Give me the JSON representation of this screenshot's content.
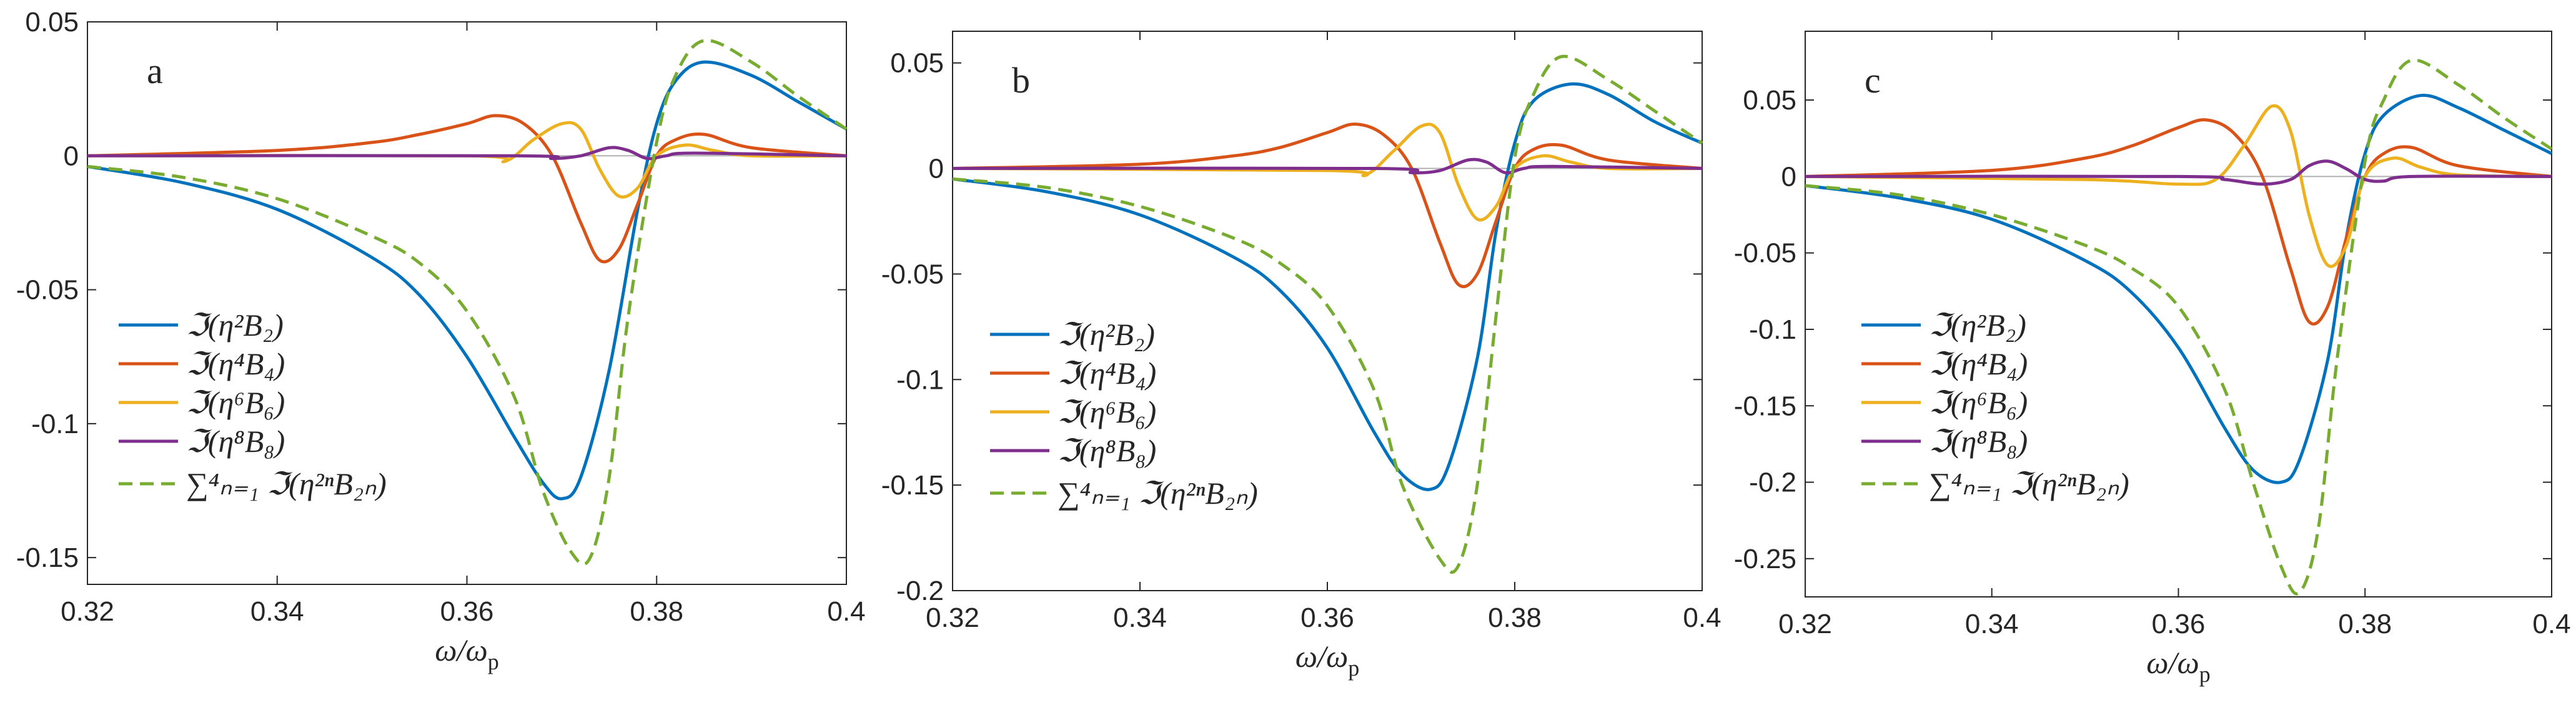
{
  "chart_data": [
    {
      "type": "line",
      "panel_label": "a",
      "xlabel": "ω/ω",
      "xlabel_sub": "p",
      "xlim": [
        0.32,
        0.4
      ],
      "ylim": [
        -0.16,
        0.05
      ],
      "xticks": [
        0.32,
        0.34,
        0.36,
        0.38,
        0.4
      ],
      "xtick_labels": [
        "0.32",
        "0.34",
        "0.36",
        "0.38",
        "0.4"
      ],
      "yticks": [
        -0.15,
        -0.1,
        -0.05,
        0,
        0.05
      ],
      "ytick_labels": [
        "-0.15",
        "-0.1",
        "-0.05",
        "0",
        "0.05"
      ],
      "legend": [
        "ℑ(η²B₂)",
        "ℑ(η⁴B₄)",
        "ℑ(η⁶B₆)",
        "ℑ(η⁸B₈)",
        "∑⁴ₙ₌₁ ℑ(η²ⁿB₂ₙ)"
      ],
      "series": [
        {
          "name": "Im(eta^2 B2)",
          "color": "#0072BD",
          "dashed": false,
          "x": [
            0.32,
            0.33,
            0.34,
            0.35,
            0.355,
            0.36,
            0.365,
            0.368,
            0.37,
            0.372,
            0.375,
            0.378,
            0.38,
            0.382,
            0.385,
            0.39,
            0.395,
            0.4
          ],
          "y": [
            -0.004,
            -0.01,
            -0.02,
            -0.038,
            -0.052,
            -0.075,
            -0.105,
            -0.122,
            -0.128,
            -0.12,
            -0.08,
            -0.02,
            0.012,
            0.028,
            0.035,
            0.03,
            0.02,
            0.01
          ]
        },
        {
          "name": "Im(eta^4 B4)",
          "color": "#D95319",
          "dashed": false,
          "x": [
            0.32,
            0.34,
            0.35,
            0.355,
            0.36,
            0.363,
            0.366,
            0.369,
            0.372,
            0.374,
            0.376,
            0.378,
            0.38,
            0.382,
            0.385,
            0.39,
            0.4
          ],
          "y": [
            0.0,
            0.002,
            0.005,
            0.008,
            0.012,
            0.015,
            0.012,
            0.0,
            -0.025,
            -0.039,
            -0.035,
            -0.018,
            0.0,
            0.006,
            0.008,
            0.003,
            0.0
          ]
        },
        {
          "name": "Im(eta^6 B6)",
          "color": "#EDB120",
          "dashed": false,
          "x": [
            0.32,
            0.36,
            0.364,
            0.367,
            0.37,
            0.372,
            0.374,
            0.376,
            0.378,
            0.38,
            0.383,
            0.386,
            0.39,
            0.4
          ],
          "y": [
            0.0,
            0.0,
            -0.002,
            0.006,
            0.012,
            0.01,
            -0.005,
            -0.015,
            -0.012,
            0.0,
            0.004,
            0.002,
            0.0,
            0.0
          ]
        },
        {
          "name": "Im(eta^8 B8)",
          "color": "#7E2F8E",
          "dashed": false,
          "x": [
            0.32,
            0.365,
            0.369,
            0.372,
            0.375,
            0.377,
            0.379,
            0.381,
            0.384,
            0.4
          ],
          "y": [
            0.0,
            0.0,
            -0.001,
            0.0,
            0.003,
            0.002,
            -0.001,
            0.0,
            0.001,
            0.0
          ]
        },
        {
          "name": "Sum",
          "color": "#77AC30",
          "dashed": true,
          "x": [
            0.32,
            0.33,
            0.34,
            0.35,
            0.355,
            0.36,
            0.365,
            0.368,
            0.371,
            0.373,
            0.375,
            0.377,
            0.38,
            0.382,
            0.385,
            0.39,
            0.395,
            0.4
          ],
          "y": [
            -0.004,
            -0.008,
            -0.016,
            -0.03,
            -0.04,
            -0.058,
            -0.09,
            -0.125,
            -0.148,
            -0.15,
            -0.12,
            -0.06,
            0.005,
            0.03,
            0.043,
            0.035,
            0.022,
            0.01
          ]
        }
      ]
    },
    {
      "type": "line",
      "panel_label": "b",
      "xlabel": "ω/ω",
      "xlabel_sub": "p",
      "xlim": [
        0.32,
        0.4
      ],
      "ylim": [
        -0.2,
        0.065
      ],
      "xticks": [
        0.32,
        0.34,
        0.36,
        0.38,
        0.4
      ],
      "xtick_labels": [
        "0.32",
        "0.34",
        "0.36",
        "0.38",
        "0.4"
      ],
      "yticks": [
        -0.2,
        -0.15,
        -0.1,
        -0.05,
        0,
        0.05
      ],
      "ytick_labels": [
        "-0.2",
        "-0.15",
        "-0.1",
        "-0.05",
        "0",
        "0.05"
      ],
      "legend": [
        "ℑ(η²B₂)",
        "ℑ(η⁴B₄)",
        "ℑ(η⁶B₆)",
        "ℑ(η⁸B₈)",
        "∑⁴ₙ₌₁ ℑ(η²ⁿB₂ₙ)"
      ],
      "series": [
        {
          "name": "Im(eta^2 B2)",
          "color": "#0072BD",
          "dashed": false,
          "x": [
            0.32,
            0.33,
            0.34,
            0.35,
            0.355,
            0.36,
            0.365,
            0.368,
            0.371,
            0.373,
            0.376,
            0.378,
            0.38,
            0.382,
            0.386,
            0.39,
            0.395,
            0.4
          ],
          "y": [
            -0.005,
            -0.011,
            -0.022,
            -0.042,
            -0.058,
            -0.085,
            -0.125,
            -0.145,
            -0.152,
            -0.14,
            -0.09,
            -0.03,
            0.012,
            0.032,
            0.04,
            0.035,
            0.022,
            0.012
          ]
        },
        {
          "name": "Im(eta^4 B4)",
          "color": "#D95319",
          "dashed": false,
          "x": [
            0.32,
            0.34,
            0.35,
            0.355,
            0.36,
            0.363,
            0.366,
            0.369,
            0.372,
            0.374,
            0.376,
            0.378,
            0.38,
            0.382,
            0.385,
            0.39,
            0.4
          ],
          "y": [
            0.0,
            0.002,
            0.006,
            0.01,
            0.017,
            0.021,
            0.016,
            0.0,
            -0.035,
            -0.055,
            -0.05,
            -0.025,
            0.0,
            0.009,
            0.011,
            0.004,
            0.0
          ]
        },
        {
          "name": "Im(eta^6 B6)",
          "color": "#EDB120",
          "dashed": false,
          "x": [
            0.32,
            0.36,
            0.364,
            0.367,
            0.37,
            0.372,
            0.374,
            0.376,
            0.378,
            0.38,
            0.383,
            0.386,
            0.39,
            0.4
          ],
          "y": [
            0.0,
            -0.001,
            -0.003,
            0.008,
            0.02,
            0.017,
            -0.008,
            -0.024,
            -0.018,
            0.0,
            0.006,
            0.003,
            0.0,
            0.0
          ]
        },
        {
          "name": "Im(eta^8 B8)",
          "color": "#7E2F8E",
          "dashed": false,
          "x": [
            0.32,
            0.365,
            0.369,
            0.372,
            0.375,
            0.377,
            0.379,
            0.381,
            0.384,
            0.4
          ],
          "y": [
            0.0,
            0.0,
            -0.002,
            -0.001,
            0.004,
            0.003,
            -0.002,
            0.0,
            0.001,
            0.0
          ]
        },
        {
          "name": "Sum",
          "color": "#77AC30",
          "dashed": true,
          "x": [
            0.32,
            0.33,
            0.34,
            0.35,
            0.355,
            0.36,
            0.365,
            0.368,
            0.372,
            0.374,
            0.376,
            0.378,
            0.38,
            0.382,
            0.385,
            0.39,
            0.395,
            0.4
          ],
          "y": [
            -0.005,
            -0.009,
            -0.018,
            -0.033,
            -0.045,
            -0.065,
            -0.105,
            -0.15,
            -0.185,
            -0.188,
            -0.15,
            -0.07,
            0.005,
            0.035,
            0.053,
            0.042,
            0.027,
            0.012
          ]
        }
      ]
    },
    {
      "type": "line",
      "panel_label": "c",
      "xlabel": "ω/ω",
      "xlabel_sub": "p",
      "xlim": [
        0.32,
        0.4
      ],
      "ylim": [
        -0.275,
        0.095
      ],
      "xticks": [
        0.32,
        0.34,
        0.36,
        0.38,
        0.4
      ],
      "xtick_labels": [
        "0.32",
        "0.34",
        "0.36",
        "0.38",
        "0.4"
      ],
      "yticks": [
        -0.25,
        -0.2,
        -0.15,
        -0.1,
        -0.05,
        0,
        0.05
      ],
      "ytick_labels": [
        "-0.25",
        "-0.2",
        "-0.15",
        "-0.1",
        "-0.05",
        "0",
        "0.05"
      ],
      "legend": [
        "ℑ(η²B₂)",
        "ℑ(η⁴B₄)",
        "ℑ(η⁶B₆)",
        "ℑ(η⁸B₈)",
        "∑⁴ₙ₌₁ ℑ(η²ⁿB₂ₙ)"
      ],
      "series": [
        {
          "name": "Im(eta^2 B2)",
          "color": "#0072BD",
          "dashed": false,
          "x": [
            0.32,
            0.33,
            0.34,
            0.35,
            0.355,
            0.36,
            0.365,
            0.368,
            0.371,
            0.373,
            0.376,
            0.378,
            0.38,
            0.382,
            0.386,
            0.39,
            0.395,
            0.4
          ],
          "y": [
            -0.006,
            -0.014,
            -0.028,
            -0.055,
            -0.076,
            -0.112,
            -0.165,
            -0.192,
            -0.2,
            -0.185,
            -0.12,
            -0.04,
            0.015,
            0.04,
            0.053,
            0.045,
            0.03,
            0.015
          ]
        },
        {
          "name": "Im(eta^4 B4)",
          "color": "#D95319",
          "dashed": false,
          "x": [
            0.32,
            0.34,
            0.35,
            0.355,
            0.36,
            0.363,
            0.366,
            0.369,
            0.372,
            0.374,
            0.376,
            0.378,
            0.38,
            0.382,
            0.385,
            0.39,
            0.4
          ],
          "y": [
            0.0,
            0.004,
            0.012,
            0.02,
            0.032,
            0.037,
            0.028,
            0.0,
            -0.06,
            -0.095,
            -0.085,
            -0.04,
            0.0,
            0.015,
            0.019,
            0.007,
            0.0
          ]
        },
        {
          "name": "Im(eta^6 B6)",
          "color": "#EDB120",
          "dashed": false,
          "x": [
            0.32,
            0.35,
            0.36,
            0.364,
            0.367,
            0.37,
            0.372,
            0.374,
            0.376,
            0.378,
            0.38,
            0.383,
            0.386,
            0.39,
            0.4
          ],
          "y": [
            0.0,
            -0.002,
            -0.005,
            -0.002,
            0.02,
            0.046,
            0.03,
            -0.025,
            -0.058,
            -0.045,
            0.0,
            0.012,
            0.006,
            0.001,
            0.0
          ]
        },
        {
          "name": "Im(eta^8 B8)",
          "color": "#7E2F8E",
          "dashed": false,
          "x": [
            0.32,
            0.36,
            0.365,
            0.369,
            0.372,
            0.374,
            0.376,
            0.378,
            0.38,
            0.382,
            0.385,
            0.4
          ],
          "y": [
            0.0,
            0.0,
            -0.002,
            -0.005,
            -0.002,
            0.007,
            0.01,
            0.005,
            -0.002,
            -0.003,
            0.0,
            0.0
          ]
        },
        {
          "name": "Sum",
          "color": "#77AC30",
          "dashed": true,
          "x": [
            0.32,
            0.33,
            0.34,
            0.35,
            0.355,
            0.36,
            0.365,
            0.368,
            0.371,
            0.373,
            0.375,
            0.377,
            0.38,
            0.382,
            0.385,
            0.39,
            0.395,
            0.4
          ],
          "y": [
            -0.006,
            -0.012,
            -0.025,
            -0.045,
            -0.06,
            -0.085,
            -0.14,
            -0.2,
            -0.255,
            -0.272,
            -0.23,
            -0.12,
            0.01,
            0.05,
            0.076,
            0.06,
            0.038,
            0.018
          ]
        }
      ]
    }
  ]
}
